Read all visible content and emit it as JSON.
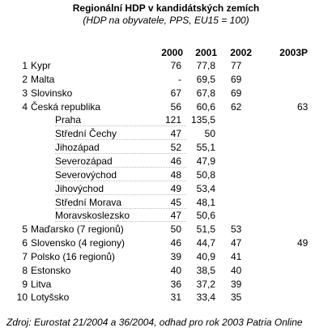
{
  "header": {
    "title": "Regionální HDP v kandidátských zemích",
    "subtitle": "(HDP na obyvatele, PPS, EU15 = 100)"
  },
  "table": {
    "columns": [
      "2000",
      "2001",
      "2002",
      "2003P"
    ],
    "rows": [
      {
        "rank": "1",
        "name": "Kypr",
        "cells": [
          "76",
          "77,8",
          "77"
        ]
      },
      {
        "rank": "2",
        "name": "Malta",
        "cells": [
          "-",
          "69,5",
          "69"
        ]
      },
      {
        "rank": "3",
        "name": "Slovinsko",
        "cells": [
          "67",
          "67,8",
          "69"
        ]
      },
      {
        "rank": "4",
        "name": "Česká republika",
        "cells": [
          "56",
          "60,6",
          "62",
          "63"
        ],
        "regions": [
          {
            "name": "Praha",
            "cells": [
              "121",
              "135,5"
            ]
          },
          {
            "name": "Střední Čechy",
            "cells": [
              "47",
              "50"
            ]
          },
          {
            "name": "Jihozápad",
            "cells": [
              "52",
              "55,1"
            ]
          },
          {
            "name": "Severozápad",
            "cells": [
              "46",
              "47,9"
            ]
          },
          {
            "name": "Severovýchod",
            "cells": [
              "48",
              "50,8"
            ]
          },
          {
            "name": "Jihovýchod",
            "cells": [
              "49",
              "53,4"
            ]
          },
          {
            "name": "Střední Morava",
            "cells": [
              "45",
              "48,1"
            ]
          },
          {
            "name": "Moravskoslezsko",
            "cells": [
              "47",
              "50,6"
            ]
          }
        ]
      },
      {
        "rank": "5",
        "name": "Maďarsko (7 regionů)",
        "cells": [
          "50",
          "51,5",
          "53"
        ]
      },
      {
        "rank": "6",
        "name": "Slovensko (4 regiony)",
        "cells": [
          "46",
          "44,7",
          "47",
          "49"
        ]
      },
      {
        "rank": "7",
        "name": "Polsko (16 regionů)",
        "cells": [
          "39",
          "40,9",
          "41"
        ]
      },
      {
        "rank": "8",
        "name": "Estonsko",
        "cells": [
          "40",
          "38,5",
          "40"
        ]
      },
      {
        "rank": "9",
        "name": "Litva",
        "cells": [
          "36",
          "37,2",
          "39"
        ]
      },
      {
        "rank": "10",
        "name": "Lotyšsko",
        "cells": [
          "31",
          "33,4",
          "35"
        ]
      }
    ]
  },
  "footer": {
    "source": "Zdroj: Eurostat 21/2004 a 36/2004, odhad pro rok 2003 Patria Online"
  }
}
